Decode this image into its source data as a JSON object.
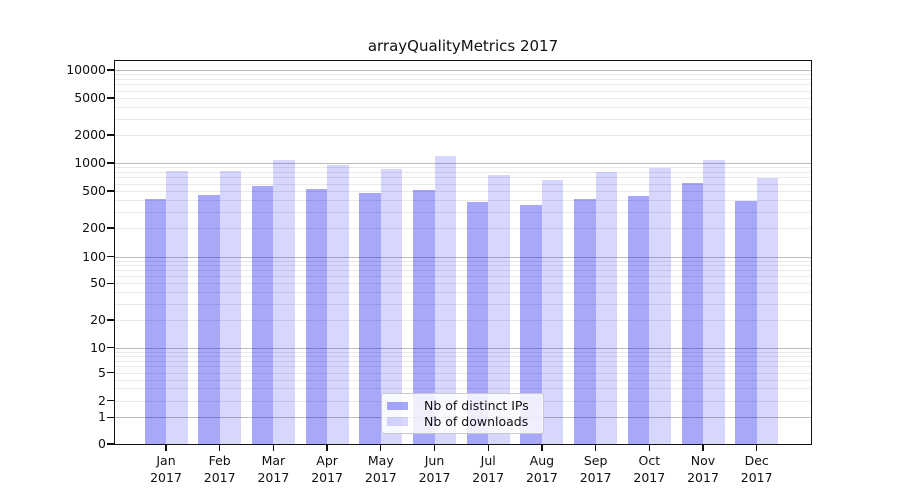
{
  "title": "arrayQualityMetrics 2017",
  "legend": {
    "items": [
      {
        "label": "Nb of distinct IPs",
        "key": "ips"
      },
      {
        "label": "Nb of downloads",
        "key": "downloads"
      }
    ]
  },
  "colors": {
    "ips_bar": "rgba(0,0,240,0.34)",
    "downloads_bar": "rgba(0,0,240,0.155)",
    "grid_minor": "#e9e9e9",
    "grid_major": "#bdbdbd",
    "spine": "#111111",
    "text": "#111111",
    "legend_border": "#c9c9c9",
    "legend_bg": "rgba(255,255,255,0.82)"
  },
  "chart_data": {
    "type": "bar",
    "title": "arrayQualityMetrics 2017",
    "year": "2017",
    "months": [
      "Jan",
      "Feb",
      "Mar",
      "Apr",
      "May",
      "Jun",
      "Jul",
      "Aug",
      "Sep",
      "Oct",
      "Nov",
      "Dec"
    ],
    "categories": [
      "Jan 2017",
      "Feb 2017",
      "Mar 2017",
      "Apr 2017",
      "May 2017",
      "Jun 2017",
      "Jul 2017",
      "Aug 2017",
      "Sep 2017",
      "Oct 2017",
      "Nov 2017",
      "Dec 2017"
    ],
    "series": [
      {
        "name": "Nb of distinct IPs",
        "key": "ips",
        "values": [
          410,
          455,
          560,
          525,
          480,
          510,
          385,
          350,
          410,
          445,
          605,
          395
        ]
      },
      {
        "name": "Nb of downloads",
        "key": "downloads",
        "values": [
          820,
          820,
          1090,
          950,
          865,
          1190,
          745,
          660,
          800,
          885,
          1090,
          690
        ]
      }
    ],
    "yscale": "symlog",
    "yticks": [
      0,
      1,
      2,
      5,
      10,
      20,
      50,
      100,
      200,
      500,
      1000,
      2000,
      5000,
      10000
    ],
    "ylim": [
      0,
      13000
    ],
    "xlabel": "",
    "ylabel": "",
    "grid": true,
    "legend_position": "lower center"
  }
}
